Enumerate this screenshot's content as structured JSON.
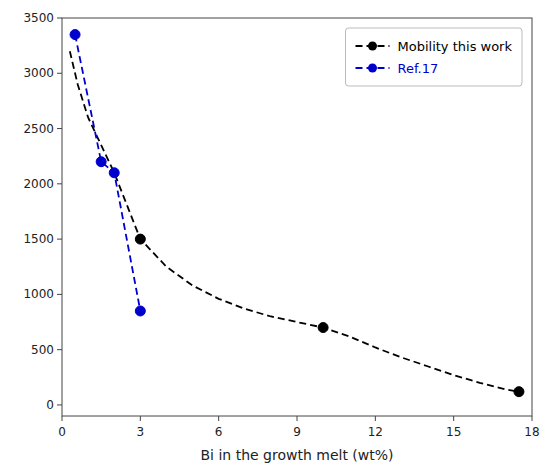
{
  "chart_data": {
    "type": "line",
    "x_label": "Bi in the growth melt (wt%)",
    "series": [
      {
        "name": "Mobility this work",
        "type": "line",
        "line_style": "dashed",
        "color": "#000000",
        "x": [
          0.3,
          0.6,
          1.0,
          1.5,
          2.0,
          2.5,
          3.0,
          4.0,
          5.0,
          6.0,
          7.0,
          8.0,
          9.0,
          10.0,
          11.0,
          12.0,
          13.0,
          14.0,
          15.0,
          16.0,
          17.0,
          17.5
        ],
        "values": [
          3200,
          2900,
          2600,
          2350,
          2100,
          1800,
          1500,
          1250,
          1080,
          960,
          870,
          800,
          750,
          700,
          620,
          520,
          430,
          350,
          270,
          200,
          140,
          120
        ]
      },
      {
        "type": "scatter",
        "marker": "circle",
        "color": "#000000",
        "x": [
          3.0,
          10.0,
          17.5
        ],
        "values": [
          1500,
          700,
          120
        ]
      },
      {
        "name": "Ref.17",
        "type": "line",
        "line_style": "dashed",
        "color": "#0000cc",
        "x": [
          0.5,
          1.5,
          2.0,
          3.0
        ],
        "values": [
          3350,
          2200,
          2100,
          850
        ]
      },
      {
        "type": "scatter",
        "marker": "circle",
        "color": "#0000cc",
        "x": [
          0.5,
          1.5,
          2.0,
          3.0
        ],
        "values": [
          3350,
          2200,
          2100,
          850
        ]
      }
    ],
    "xlim": [
      0,
      18
    ],
    "ylim": [
      -100,
      3500
    ],
    "xticks": [
      0,
      3,
      6,
      9,
      12,
      15,
      18
    ],
    "yticks": [
      0,
      500,
      1000,
      1500,
      2000,
      2500,
      3000,
      3500
    ],
    "grid": false,
    "legend": "upper right"
  }
}
